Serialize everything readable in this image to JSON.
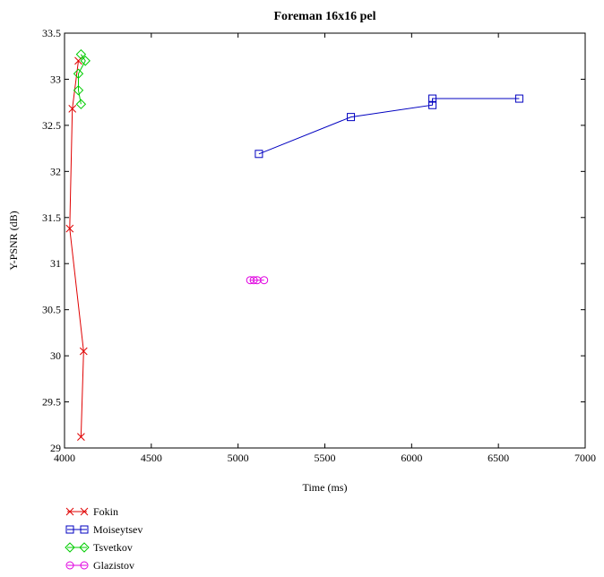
{
  "chart_data": {
    "type": "line",
    "title": "Foreman 16x16 pel",
    "xlabel": "Time (ms)",
    "ylabel": "Y-PSNR (dB)",
    "xlim": [
      4000,
      7000
    ],
    "ylim": [
      29,
      33.5
    ],
    "xticks": [
      4000,
      4500,
      5000,
      5500,
      6000,
      6500,
      7000
    ],
    "yticks": [
      29,
      29.5,
      30,
      30.5,
      31,
      31.5,
      32,
      32.5,
      33,
      33.5
    ],
    "grid": false,
    "legend_position": "below-left",
    "series": [
      {
        "name": "Fokin",
        "color": "#e00000",
        "marker": "x",
        "points": [
          [
            4095,
            29.12
          ],
          [
            4110,
            30.05
          ],
          [
            4030,
            31.38
          ],
          [
            4045,
            32.68
          ],
          [
            4080,
            33.2
          ]
        ]
      },
      {
        "name": "Moiseytsev",
        "color": "#0000c0",
        "marker": "square",
        "points": [
          [
            5120,
            32.19
          ],
          [
            5650,
            32.59
          ],
          [
            6120,
            32.72
          ],
          [
            6120,
            32.79
          ],
          [
            6620,
            32.79
          ]
        ]
      },
      {
        "name": "Tsvetkov",
        "color": "#00cc00",
        "marker": "diamond",
        "points": [
          [
            4095,
            32.73
          ],
          [
            4080,
            32.88
          ],
          [
            4080,
            33.06
          ],
          [
            4120,
            33.2
          ],
          [
            4095,
            33.27
          ]
        ]
      },
      {
        "name": "Glazistov",
        "color": "#e000e0",
        "marker": "circle",
        "points": [
          [
            5070,
            30.82
          ],
          [
            5090,
            30.82
          ],
          [
            5110,
            30.82
          ],
          [
            5150,
            30.82
          ]
        ]
      }
    ]
  }
}
